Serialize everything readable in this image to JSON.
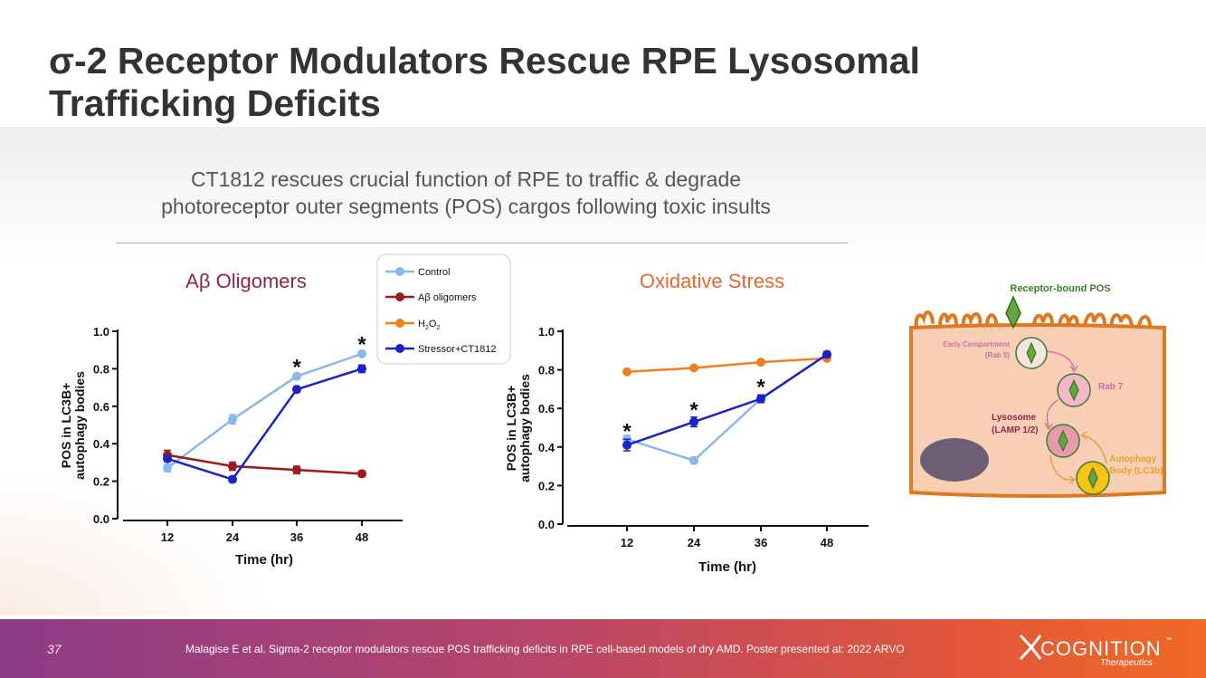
{
  "slide": {
    "title_line1": "σ-2 Receptor Modulators Rescue RPE Lysosomal",
    "title_line2": "Trafficking Deficits",
    "subtitle_line1": "CT1812 rescues crucial function of RPE to traffic & degrade",
    "subtitle_line2": "photoreceptor outer segments (POS) cargos following toxic insults"
  },
  "colors": {
    "control": "#8ab8ec",
    "abeta": "#9b1b1b",
    "h2o2": "#f07f1d",
    "ct1812": "#1a22c8",
    "abeta_title": "#8e2447",
    "ox_title": "#e2692a"
  },
  "legend": {
    "control": "Control",
    "abeta": "Aβ oligomers",
    "h2o2_main": "H",
    "h2o2_sub1": "2",
    "h2o2_mid": "O",
    "h2o2_sub2": "2",
    "ct1812": "Stressor+CT1812"
  },
  "chart_data": [
    {
      "type": "line",
      "title": "Aβ Oligomers",
      "xlabel": "Time (hr)",
      "ylabel_line1": "POS in LC3B+",
      "ylabel_line2": "autophagy bodies",
      "x": [
        12,
        24,
        36,
        48
      ],
      "xticks": [
        "12",
        "24",
        "36",
        "48"
      ],
      "yticks": [
        "0.0",
        "0.2",
        "0.4",
        "0.6",
        "0.8",
        "1.0"
      ],
      "ylim": [
        0,
        1.0
      ],
      "series": [
        {
          "name": "Control",
          "key": "control",
          "values": [
            0.27,
            0.53,
            0.76,
            0.88
          ],
          "err": [
            0.02,
            0.025,
            0.012,
            0.01
          ]
        },
        {
          "name": "Aβ oligomers",
          "key": "abeta",
          "values": [
            0.34,
            0.28,
            0.26,
            0.24
          ],
          "err": [
            0.025,
            0.022,
            0.02,
            0.015
          ]
        },
        {
          "name": "Stressor+CT1812",
          "key": "ct1812",
          "values": [
            0.32,
            0.21,
            0.69,
            0.8
          ],
          "err": [
            0.015,
            0.015,
            0.015,
            0.02
          ]
        }
      ],
      "annotations": [
        {
          "x": 36,
          "y": 0.82,
          "text": "*"
        },
        {
          "x": 48,
          "y": 0.94,
          "text": "*"
        }
      ]
    },
    {
      "type": "line",
      "title": "Oxidative Stress",
      "xlabel": "Time (hr)",
      "ylabel_line1": "POS in LC3B+",
      "ylabel_line2": "autophagy bodies",
      "x": [
        12,
        24,
        36,
        48
      ],
      "xticks": [
        "12",
        "24",
        "36",
        "48"
      ],
      "yticks": [
        "0.0",
        "0.2",
        "0.4",
        "0.6",
        "0.8",
        "1.0"
      ],
      "ylim": [
        0,
        1.0
      ],
      "series": [
        {
          "name": "H2O2",
          "key": "h2o2",
          "values": [
            0.79,
            0.81,
            0.84,
            0.86
          ],
          "err": [
            0.01,
            0.01,
            0.01,
            0.01
          ]
        },
        {
          "name": "Control",
          "key": "control",
          "values": [
            0.44,
            0.33,
            0.65,
            0.88
          ],
          "err": [
            0.02,
            0.015,
            0.02,
            0.015
          ]
        },
        {
          "name": "Stressor+CT1812",
          "key": "ct1812",
          "values": [
            0.41,
            0.53,
            0.65,
            0.88
          ],
          "err": [
            0.03,
            0.025,
            0.02,
            0.015
          ]
        }
      ],
      "annotations": [
        {
          "x": 12,
          "y": 0.49,
          "text": "*"
        },
        {
          "x": 24,
          "y": 0.6,
          "text": "*"
        },
        {
          "x": 36,
          "y": 0.72,
          "text": "*"
        }
      ]
    }
  ],
  "diagram": {
    "receptor_label": "Receptor-bound POS",
    "early_line1": "Early Compartment",
    "early_line2": "(Rab 5)",
    "rab7": "Rab 7",
    "lyso_line1": "Lysosome",
    "lyso_line2": "(LAMP 1/2)",
    "auto_line1": "Autophagy",
    "auto_line2": "Body (LC3b)"
  },
  "footer": {
    "page_number": "37",
    "citation": "Malagise E et al. Sigma-2 receptor modulators rescue POS trafficking deficits in RPE cell-based models of dry AMD. Poster presented at: 2022 ARVO",
    "logo_text": "COGNITION",
    "logo_tm": "™",
    "logo_sub": "Therapeutics"
  }
}
